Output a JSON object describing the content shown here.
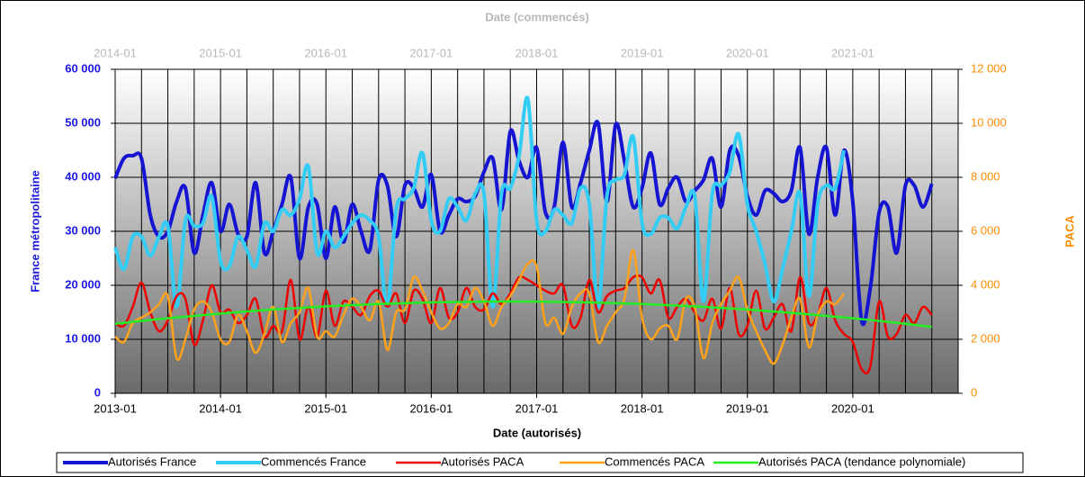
{
  "chart_data": {
    "type": "line",
    "xlabel": "Date (autorisés)",
    "x2label": "Date (commencés)",
    "ylabel": "France métropolitaine",
    "y2label": "PACA",
    "xlim": [
      "2013-01",
      "2021-01"
    ],
    "x2lim": [
      "2014-01",
      "2022-01"
    ],
    "xticks": [
      "2013-01",
      "2014-01",
      "2015-01",
      "2016-01",
      "2017-01",
      "2018-01",
      "2019-01",
      "2020-01"
    ],
    "x2ticks": [
      "2014-01",
      "2015-01",
      "2016-01",
      "2017-01",
      "2018-01",
      "2019-01",
      "2020-01",
      "2021-01"
    ],
    "xgrid_months": 3,
    "ylim": [
      0,
      60000
    ],
    "yticks": [
      0,
      {
        "value": 10000,
        "label": "10 000"
      },
      {
        "value": 20000,
        "label": "20 000"
      },
      {
        "value": 30000,
        "label": "30 000"
      },
      {
        "value": 40000,
        "label": "40 000"
      },
      {
        "value": 50000,
        "label": "50 000"
      },
      {
        "value": 60000,
        "label": "60 000"
      }
    ],
    "y2lim": [
      0,
      12000
    ],
    "y2ticks": [
      0,
      {
        "value": 2000,
        "label": "2 000"
      },
      {
        "value": 4000,
        "label": "4 000"
      },
      {
        "value": 6000,
        "label": "6 000"
      },
      {
        "value": 8000,
        "label": "8 000"
      },
      {
        "value": 10000,
        "label": "10 000"
      },
      {
        "value": 12000,
        "label": "12 000"
      }
    ],
    "grid": true,
    "legend": "bottom",
    "series": [
      {
        "name": "Autorisés France",
        "color": "#1414d2",
        "axis": "y",
        "xaxis": "x",
        "x": [
          "2013-01",
          "2013-02",
          "2013-03",
          "2013-04",
          "2013-05",
          "2013-06",
          "2013-07",
          "2013-08",
          "2013-09",
          "2013-10",
          "2013-11",
          "2013-12",
          "2014-01",
          "2014-02",
          "2014-03",
          "2014-04",
          "2014-05",
          "2014-06",
          "2014-07",
          "2014-08",
          "2014-09",
          "2014-10",
          "2014-11",
          "2014-12",
          "2015-01",
          "2015-02",
          "2015-03",
          "2015-04",
          "2015-05",
          "2015-06",
          "2015-07",
          "2015-08",
          "2015-09",
          "2015-10",
          "2015-11",
          "2015-12",
          "2016-01",
          "2016-02",
          "2016-03",
          "2016-04",
          "2016-05",
          "2016-06",
          "2016-07",
          "2016-08",
          "2016-09",
          "2016-10",
          "2016-11",
          "2016-12",
          "2017-01",
          "2017-02",
          "2017-03",
          "2017-04",
          "2017-05",
          "2017-06",
          "2017-07",
          "2017-08",
          "2017-09",
          "2017-10",
          "2017-11",
          "2017-12",
          "2018-01",
          "2018-02",
          "2018-03",
          "2018-04",
          "2018-05",
          "2018-06",
          "2018-07",
          "2018-08",
          "2018-09",
          "2018-10",
          "2018-11",
          "2018-12",
          "2019-01",
          "2019-02",
          "2019-03",
          "2019-04",
          "2019-05",
          "2019-06",
          "2019-07",
          "2019-08",
          "2019-09",
          "2019-10",
          "2019-11",
          "2019-12",
          "2020-01",
          "2020-02",
          "2020-03",
          "2020-04",
          "2020-05",
          "2020-06",
          "2020-07",
          "2020-08",
          "2020-09",
          "2020-10"
        ],
        "values": [
          39800,
          43500,
          44000,
          43500,
          33000,
          29000,
          30000,
          35500,
          38000,
          26000,
          33000,
          39000,
          30000,
          35000,
          29500,
          29000,
          39000,
          26000,
          30000,
          35000,
          40000,
          25000,
          34500,
          35000,
          25000,
          34500,
          28000,
          35000,
          30000,
          26500,
          39500,
          38500,
          29000,
          38500,
          38000,
          34500,
          40500,
          30000,
          33000,
          36000,
          35500,
          36500,
          41000,
          43500,
          34000,
          48500,
          43000,
          40000,
          45500,
          33500,
          34500,
          46500,
          34500,
          39000,
          45000,
          50000,
          35500,
          49800,
          43000,
          34500,
          38000,
          44500,
          35000,
          38000,
          40000,
          35500,
          37500,
          39500,
          43500,
          34500,
          45000,
          44000,
          36500,
          33000,
          37500,
          37000,
          35500,
          37500,
          45500,
          29500,
          40000,
          45500,
          33000,
          45000,
          35500,
          13500,
          19500,
          33500,
          34500,
          26000,
          38500,
          38500,
          34500,
          38800
        ]
      },
      {
        "name": "Commencés France",
        "color": "#33ccf5",
        "axis": "y",
        "xaxis": "x2",
        "x": [
          "2014-01",
          "2014-02",
          "2014-03",
          "2014-04",
          "2014-05",
          "2014-06",
          "2014-07",
          "2014-08",
          "2014-09",
          "2014-10",
          "2014-11",
          "2014-12",
          "2015-01",
          "2015-02",
          "2015-03",
          "2015-04",
          "2015-05",
          "2015-06",
          "2015-07",
          "2015-08",
          "2015-09",
          "2015-10",
          "2015-11",
          "2015-12",
          "2016-01",
          "2016-02",
          "2016-03",
          "2016-04",
          "2016-05",
          "2016-06",
          "2016-07",
          "2016-08",
          "2016-09",
          "2016-10",
          "2016-11",
          "2016-12",
          "2017-01",
          "2017-02",
          "2017-03",
          "2017-04",
          "2017-05",
          "2017-06",
          "2017-07",
          "2017-08",
          "2017-09",
          "2017-10",
          "2017-11",
          "2017-12",
          "2018-01",
          "2018-02",
          "2018-03",
          "2018-04",
          "2018-05",
          "2018-06",
          "2018-07",
          "2018-08",
          "2018-09",
          "2018-10",
          "2018-11",
          "2018-12",
          "2019-01",
          "2019-02",
          "2019-03",
          "2019-04",
          "2019-05",
          "2019-06",
          "2019-07",
          "2019-08",
          "2019-09",
          "2019-10",
          "2019-11",
          "2019-12",
          "2020-01",
          "2020-02",
          "2020-03",
          "2020-04",
          "2020-05",
          "2020-06",
          "2020-07",
          "2020-08",
          "2020-09",
          "2020-10",
          "2020-11",
          "2020-12"
        ],
        "values": [
          27000,
          23000,
          29000,
          29000,
          25500,
          29000,
          31000,
          16000,
          32000,
          31000,
          31500,
          36500,
          24500,
          23500,
          29000,
          26500,
          23500,
          31500,
          30000,
          34000,
          33000,
          36000,
          42000,
          26000,
          30000,
          27000,
          29000,
          31500,
          33000,
          32000,
          29000,
          16000,
          34000,
          36000,
          38000,
          44500,
          32000,
          30000,
          36000,
          34500,
          32000,
          37000,
          37000,
          16000,
          37000,
          38000,
          44000,
          54500,
          32000,
          30000,
          34000,
          33000,
          31500,
          38000,
          35000,
          16000,
          36500,
          39500,
          40500,
          47500,
          31500,
          29500,
          32500,
          32500,
          30500,
          34500,
          36500,
          17000,
          37000,
          38500,
          41000,
          48000,
          35000,
          30000,
          24000,
          17000,
          23000,
          30000,
          37000,
          18000,
          35000,
          38500,
          38000,
          45000
        ]
      },
      {
        "name": "Autorisés PACA",
        "color": "#ee0000",
        "axis": "y2",
        "xaxis": "x",
        "x": [
          "2013-01",
          "2013-02",
          "2013-03",
          "2013-04",
          "2013-05",
          "2013-06",
          "2013-07",
          "2013-08",
          "2013-09",
          "2013-10",
          "2013-11",
          "2013-12",
          "2014-01",
          "2014-02",
          "2014-03",
          "2014-04",
          "2014-05",
          "2014-06",
          "2014-07",
          "2014-08",
          "2014-09",
          "2014-10",
          "2014-11",
          "2014-12",
          "2015-01",
          "2015-02",
          "2015-03",
          "2015-04",
          "2015-05",
          "2015-06",
          "2015-07",
          "2015-08",
          "2015-09",
          "2015-10",
          "2015-11",
          "2015-12",
          "2016-01",
          "2016-02",
          "2016-03",
          "2016-04",
          "2016-05",
          "2016-06",
          "2016-07",
          "2016-08",
          "2016-09",
          "2016-10",
          "2016-11",
          "2016-12",
          "2017-01",
          "2017-02",
          "2017-03",
          "2017-04",
          "2017-05",
          "2017-06",
          "2017-07",
          "2017-08",
          "2017-09",
          "2017-10",
          "2017-11",
          "2017-12",
          "2018-01",
          "2018-02",
          "2018-03",
          "2018-04",
          "2018-05",
          "2018-06",
          "2018-07",
          "2018-08",
          "2018-09",
          "2018-10",
          "2018-11",
          "2018-12",
          "2019-01",
          "2019-02",
          "2019-03",
          "2019-04",
          "2019-05",
          "2019-06",
          "2019-07",
          "2019-08",
          "2019-09",
          "2019-10",
          "2019-11",
          "2019-12",
          "2020-01",
          "2020-02",
          "2020-03",
          "2020-04",
          "2020-05",
          "2020-06",
          "2020-07",
          "2020-08",
          "2020-09",
          "2020-10"
        ],
        "values": [
          2600,
          2500,
          3200,
          4100,
          3000,
          2300,
          2700,
          3600,
          3500,
          1800,
          2700,
          4000,
          3000,
          3100,
          2600,
          2900,
          3500,
          2100,
          2500,
          2300,
          4200,
          2000,
          3200,
          2100,
          3800,
          2500,
          3400,
          3200,
          2900,
          3600,
          3800,
          3200,
          3700,
          2600,
          3800,
          3500,
          2600,
          3900,
          2800,
          3000,
          3900,
          3200,
          3100,
          3700,
          3300,
          3700,
          4300,
          4200,
          4000,
          3800,
          3700,
          4000,
          2500,
          2800,
          4200,
          3000,
          3600,
          3800,
          3900,
          4300,
          4300,
          3700,
          4200,
          2800,
          3200,
          3500,
          3000,
          2700,
          3500,
          2400,
          3900,
          2200,
          2500,
          3800,
          2400,
          2800,
          3300,
          2300,
          4300,
          2600,
          2900,
          3900,
          2700,
          2200,
          1900,
          900,
          1000,
          3400,
          2100,
          2200,
          2900,
          2600,
          3200,
          2900
        ]
      },
      {
        "name": "Commencés PACA",
        "color": "#ffa21a",
        "axis": "y2",
        "xaxis": "x2",
        "x": [
          "2014-01",
          "2014-02",
          "2014-03",
          "2014-04",
          "2014-05",
          "2014-06",
          "2014-07",
          "2014-08",
          "2014-09",
          "2014-10",
          "2014-11",
          "2014-12",
          "2015-01",
          "2015-02",
          "2015-03",
          "2015-04",
          "2015-05",
          "2015-06",
          "2015-07",
          "2015-08",
          "2015-09",
          "2015-10",
          "2015-11",
          "2015-12",
          "2016-01",
          "2016-02",
          "2016-03",
          "2016-04",
          "2016-05",
          "2016-06",
          "2016-07",
          "2016-08",
          "2016-09",
          "2016-10",
          "2016-11",
          "2016-12",
          "2017-01",
          "2017-02",
          "2017-03",
          "2017-04",
          "2017-05",
          "2017-06",
          "2017-07",
          "2017-08",
          "2017-09",
          "2017-10",
          "2017-11",
          "2017-12",
          "2018-01",
          "2018-02",
          "2018-03",
          "2018-04",
          "2018-05",
          "2018-06",
          "2018-07",
          "2018-08",
          "2018-09",
          "2018-10",
          "2018-11",
          "2018-12",
          "2019-01",
          "2019-02",
          "2019-03",
          "2019-04",
          "2019-05",
          "2019-06",
          "2019-07",
          "2019-08",
          "2019-09",
          "2019-10",
          "2019-11",
          "2019-12",
          "2020-01",
          "2020-02",
          "2020-03",
          "2020-04",
          "2020-05",
          "2020-06",
          "2020-07",
          "2020-08",
          "2020-09",
          "2020-10",
          "2020-11",
          "2020-12"
        ],
        "values": [
          2100,
          1900,
          2600,
          2800,
          3000,
          3300,
          3600,
          1300,
          2000,
          3100,
          3400,
          3000,
          2000,
          1900,
          2900,
          2300,
          1500,
          2200,
          3200,
          1900,
          2600,
          3000,
          3900,
          2100,
          2300,
          2100,
          2900,
          3500,
          3200,
          2700,
          3400,
          1600,
          3000,
          3100,
          4300,
          3800,
          3000,
          2400,
          2600,
          3300,
          3200,
          3900,
          3400,
          2500,
          3200,
          3600,
          4200,
          4800,
          4700,
          2600,
          2800,
          2200,
          3200,
          3700,
          3700,
          1900,
          2500,
          3000,
          3500,
          5300,
          2800,
          2000,
          2400,
          2500,
          2000,
          3500,
          3200,
          1300,
          2600,
          3300,
          3800,
          4300,
          3100,
          2300,
          1600,
          1100,
          1800,
          2800,
          3500,
          1700,
          2900,
          3400,
          3300,
          3700
        ]
      },
      {
        "name": "Autorisés PACA (tendance polynomiale)",
        "color": "#22ee22",
        "axis": "y2",
        "xaxis": "x",
        "x": [
          "2013-01",
          "2013-07",
          "2014-01",
          "2014-07",
          "2015-01",
          "2015-07",
          "2016-01",
          "2016-07",
          "2017-01",
          "2017-07",
          "2018-01",
          "2018-07",
          "2019-01",
          "2019-07",
          "2020-01",
          "2020-07",
          "2020-10"
        ],
        "values": [
          2575,
          2780,
          2956,
          3103,
          3220,
          3308,
          3367,
          3396,
          3396,
          3367,
          3308,
          3220,
          3103,
          2956,
          2780,
          2575,
          2461
        ]
      }
    ]
  }
}
